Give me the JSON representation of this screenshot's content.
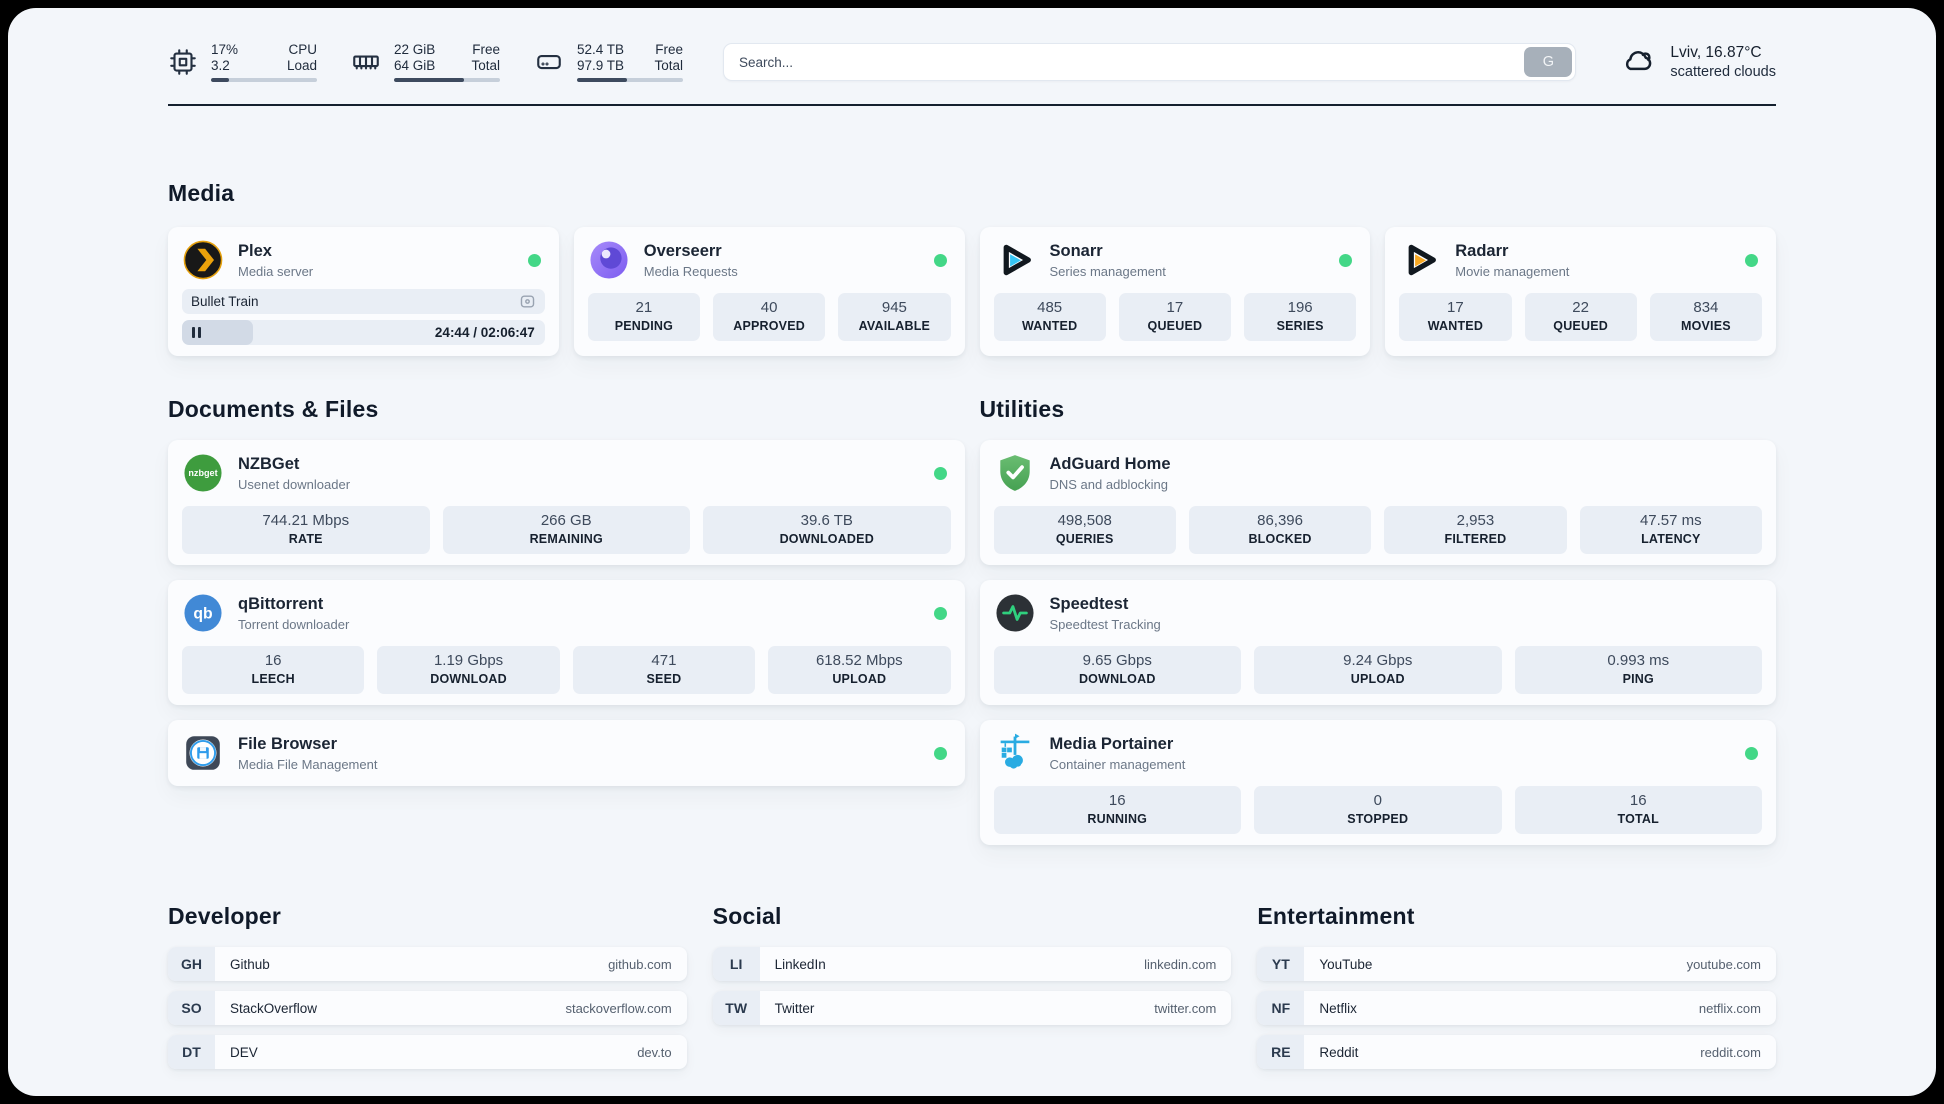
{
  "header": {
    "metrics": [
      {
        "icon": "cpu-icon",
        "rows": [
          {
            "value": "17%",
            "label": "CPU"
          },
          {
            "value": "3.2",
            "label": "Load"
          }
        ],
        "progress_pct": 17
      },
      {
        "icon": "ram-icon",
        "rows": [
          {
            "value": "22 GiB",
            "label": "Free"
          },
          {
            "value": "64 GiB",
            "label": "Total"
          }
        ],
        "progress_pct": 66
      },
      {
        "icon": "disk-icon",
        "rows": [
          {
            "value": "52.4 TB",
            "label": "Free"
          },
          {
            "value": "97.9 TB",
            "label": "Total"
          }
        ],
        "progress_pct": 47
      }
    ],
    "search": {
      "placeholder": "Search...",
      "button_label": "G"
    },
    "weather": {
      "location": "Lviv, 16.87°C",
      "condition": "scattered clouds",
      "icon": "cloud-icon"
    }
  },
  "sections": {
    "media": "Media",
    "documents": "Documents & Files",
    "utilities": "Utilities",
    "developer": "Developer",
    "social": "Social",
    "entertainment": "Entertainment"
  },
  "apps": {
    "plex": {
      "name": "Plex",
      "description": "Media server",
      "online": true,
      "session": {
        "title": "Bullet Train",
        "time": "24:44 / 02:06:47",
        "progress_pct": 19.5
      }
    },
    "overseerr": {
      "name": "Overseerr",
      "description": "Media Requests",
      "online": true,
      "stats": [
        {
          "value": "21",
          "label": "PENDING"
        },
        {
          "value": "40",
          "label": "APPROVED"
        },
        {
          "value": "945",
          "label": "AVAILABLE"
        }
      ]
    },
    "sonarr": {
      "name": "Sonarr",
      "description": "Series management",
      "online": true,
      "stats": [
        {
          "value": "485",
          "label": "WANTED"
        },
        {
          "value": "17",
          "label": "QUEUED"
        },
        {
          "value": "196",
          "label": "SERIES"
        }
      ]
    },
    "radarr": {
      "name": "Radarr",
      "description": "Movie management",
      "online": true,
      "stats": [
        {
          "value": "17",
          "label": "WANTED"
        },
        {
          "value": "22",
          "label": "QUEUED"
        },
        {
          "value": "834",
          "label": "MOVIES"
        }
      ]
    },
    "nzbget": {
      "name": "NZBGet",
      "description": "Usenet downloader",
      "online": true,
      "stats": [
        {
          "value": "744.21 Mbps",
          "label": "RATE"
        },
        {
          "value": "266 GB",
          "label": "REMAINING"
        },
        {
          "value": "39.6 TB",
          "label": "DOWNLOADED"
        }
      ]
    },
    "qbittorrent": {
      "name": "qBittorrent",
      "description": "Torrent downloader",
      "online": true,
      "stats": [
        {
          "value": "16",
          "label": "LEECH"
        },
        {
          "value": "1.19 Gbps",
          "label": "DOWNLOAD"
        },
        {
          "value": "471",
          "label": "SEED"
        },
        {
          "value": "618.52 Mbps",
          "label": "UPLOAD"
        }
      ]
    },
    "filebrowser": {
      "name": "File Browser",
      "description": "Media File Management",
      "online": true
    },
    "adguard": {
      "name": "AdGuard Home",
      "description": "DNS and adblocking",
      "stats": [
        {
          "value": "498,508",
          "label": "QUERIES"
        },
        {
          "value": "86,396",
          "label": "BLOCKED"
        },
        {
          "value": "2,953",
          "label": "FILTERED"
        },
        {
          "value": "47.57 ms",
          "label": "LATENCY"
        }
      ]
    },
    "speedtest": {
      "name": "Speedtest",
      "description": "Speedtest Tracking",
      "stats": [
        {
          "value": "9.65 Gbps",
          "label": "DOWNLOAD"
        },
        {
          "value": "9.24 Gbps",
          "label": "UPLOAD"
        },
        {
          "value": "0.993 ms",
          "label": "PING"
        }
      ]
    },
    "portainer": {
      "name": "Media Portainer",
      "description": "Container management",
      "online": true,
      "stats": [
        {
          "value": "16",
          "label": "RUNNING"
        },
        {
          "value": "0",
          "label": "STOPPED"
        },
        {
          "value": "16",
          "label": "TOTAL"
        }
      ]
    }
  },
  "links": {
    "developer": [
      {
        "abbr": "GH",
        "label": "Github",
        "url": "github.com"
      },
      {
        "abbr": "SO",
        "label": "StackOverflow",
        "url": "stackoverflow.com"
      },
      {
        "abbr": "DT",
        "label": "DEV",
        "url": "dev.to"
      }
    ],
    "social": [
      {
        "abbr": "LI",
        "label": "LinkedIn",
        "url": "linkedin.com"
      },
      {
        "abbr": "TW",
        "label": "Twitter",
        "url": "twitter.com"
      }
    ],
    "entertainment": [
      {
        "abbr": "YT",
        "label": "YouTube",
        "url": "youtube.com"
      },
      {
        "abbr": "NF",
        "label": "Netflix",
        "url": "netflix.com"
      },
      {
        "abbr": "RE",
        "label": "Reddit",
        "url": "reddit.com"
      }
    ]
  },
  "colors": {
    "status_online": "#43d787",
    "accent_plex": "#e5a00d",
    "accent_sonarr": "#35c5f4",
    "accent_radarr": "#f7a823",
    "accent_nzbget": "#3e9c3e",
    "accent_qbittorrent": "#4189d6",
    "accent_adguard": "#57b564",
    "accent_speedtest": "#2fd07e",
    "accent_portainer": "#29abe2"
  }
}
